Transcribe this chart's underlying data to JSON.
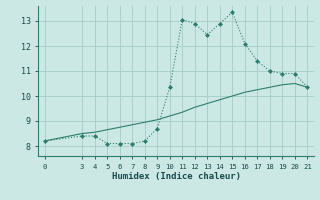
{
  "xlabel": "Humidex (Indice chaleur)",
  "background_color": "#cce8e4",
  "grid_color": "#aacfca",
  "line_color": "#2d7d6e",
  "xlim": [
    -0.5,
    21.5
  ],
  "ylim": [
    7.6,
    13.6
  ],
  "xticks": [
    0,
    3,
    4,
    5,
    6,
    7,
    8,
    9,
    10,
    11,
    12,
    13,
    14,
    15,
    16,
    17,
    18,
    19,
    20,
    21
  ],
  "yticks": [
    8,
    9,
    10,
    11,
    12,
    13
  ],
  "dotted_x": [
    0,
    3,
    4,
    5,
    6,
    7,
    8,
    9,
    10,
    11,
    12,
    13,
    14,
    15,
    16,
    17,
    18,
    19,
    20,
    21
  ],
  "dotted_y": [
    8.2,
    8.4,
    8.4,
    8.1,
    8.1,
    8.1,
    8.2,
    8.7,
    10.35,
    13.05,
    12.9,
    12.45,
    12.9,
    13.35,
    12.1,
    11.4,
    11.0,
    10.9,
    10.9,
    10.35
  ],
  "solid_x": [
    0,
    3,
    4,
    5,
    6,
    7,
    8,
    9,
    10,
    11,
    12,
    13,
    14,
    15,
    16,
    17,
    18,
    19,
    20,
    21
  ],
  "solid_y": [
    8.2,
    8.5,
    8.55,
    8.65,
    8.75,
    8.85,
    8.95,
    9.05,
    9.2,
    9.35,
    9.55,
    9.7,
    9.85,
    10.0,
    10.15,
    10.25,
    10.35,
    10.45,
    10.5,
    10.35
  ]
}
